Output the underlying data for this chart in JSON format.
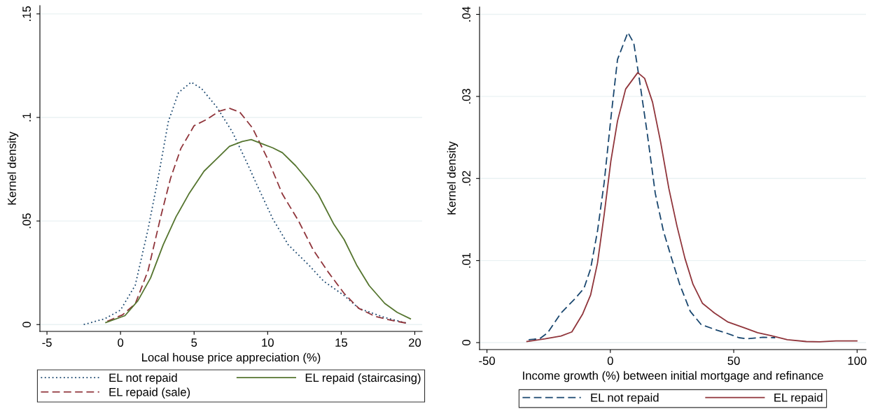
{
  "chart_data": [
    {
      "type": "line",
      "xlabel": "Local house price appreciation (%)",
      "ylabel": "Kernel density",
      "xlim": [
        -5.48,
        20.5
      ],
      "ylim": [
        -0.0033,
        0.154
      ],
      "xticks": [
        -5,
        0,
        5,
        10,
        15,
        20
      ],
      "yticks": [
        {
          "value": 0,
          "label": "0"
        },
        {
          "value": 0.05,
          "label": ".05"
        },
        {
          "value": 0.1,
          "label": ".1"
        },
        {
          "value": 0.15,
          "label": ".15"
        }
      ],
      "grid": "y",
      "legend": "bottom",
      "series": [
        {
          "name": "EL not repaid",
          "color": "#1a476f",
          "line_style": "dotted",
          "x": [
            -2.5,
            -1.07,
            0,
            1.0,
            1.87,
            2.56,
            3.25,
            3.94,
            4.8,
            5.5,
            6.54,
            7.6,
            8.6,
            9.3,
            10.35,
            11.4,
            12.8,
            13.8,
            15.2,
            16.2,
            17.96,
            19.5
          ],
          "values": [
            0,
            0.0028,
            0.007,
            0.019,
            0.046,
            0.071,
            0.098,
            0.112,
            0.117,
            0.114,
            0.105,
            0.093,
            0.078,
            0.067,
            0.051,
            0.0385,
            0.0287,
            0.021,
            0.014,
            0.0078,
            0.0034,
            0.0006
          ]
        },
        {
          "name": "EL repaid (sale)",
          "color": "#90353b",
          "line_style": "dashed",
          "x": [
            -0.9,
            0.14,
            1.0,
            1.87,
            2.73,
            3.4,
            4.1,
            5.0,
            5.85,
            6.7,
            7.4,
            8.1,
            8.96,
            10.0,
            11.0,
            12.1,
            13.1,
            14.15,
            15.2,
            16.2,
            17.3,
            18.3,
            19.5
          ],
          "values": [
            0.0016,
            0.0047,
            0.01,
            0.026,
            0.052,
            0.0706,
            0.085,
            0.096,
            0.099,
            0.103,
            0.1044,
            0.1026,
            0.095,
            0.08,
            0.063,
            0.05,
            0.036,
            0.025,
            0.015,
            0.0078,
            0.004,
            0.0022,
            0.0006
          ]
        },
        {
          "name": "EL repaid (staircasing)",
          "color": "#55752f",
          "line_style": "solid",
          "x": [
            -1.0,
            0.3,
            1.18,
            2.04,
            2.9,
            3.77,
            4.64,
            5.67,
            6.54,
            7.4,
            8.27,
            8.88,
            9.65,
            10.35,
            11.0,
            11.9,
            12.77,
            13.46,
            14.5,
            15.2,
            16.05,
            16.9,
            17.96,
            18.8,
            19.7
          ],
          "values": [
            0.001,
            0.0043,
            0.0115,
            0.0225,
            0.0385,
            0.052,
            0.063,
            0.074,
            0.08,
            0.086,
            0.0884,
            0.0893,
            0.0872,
            0.0853,
            0.083,
            0.0767,
            0.0693,
            0.0626,
            0.0484,
            0.041,
            0.0287,
            0.0188,
            0.0102,
            0.0059,
            0.0028
          ]
        }
      ]
    },
    {
      "type": "line",
      "xlabel": "Income growth (%) between initial mortgage and refinance",
      "ylabel": "Kernel density",
      "xlim": [
        -53,
        103.6
      ],
      "ylim": [
        -0.00085,
        0.0409
      ],
      "xticks": [
        -50,
        0,
        50,
        100
      ],
      "yticks": [
        {
          "value": 0,
          "label": "0"
        },
        {
          "value": 0.01,
          "label": ".01"
        },
        {
          "value": 0.02,
          "label": ".02"
        },
        {
          "value": 0.03,
          "label": ".03"
        },
        {
          "value": 0.04,
          "label": ".04"
        }
      ],
      "grid": "y",
      "legend": "bottom",
      "series": [
        {
          "name": "EL not repaid",
          "color": "#1a476f",
          "line_style": "dashed",
          "x": [
            -33.1,
            -28.7,
            -25.4,
            -20,
            -14.5,
            -10.7,
            -8,
            -5.2,
            -2.5,
            0.2,
            2.9,
            7.1,
            9.5,
            11.7,
            15.0,
            18.2,
            21.5,
            24.8,
            28.1,
            32.4,
            36.8,
            43.3,
            46.6,
            52.1,
            55.3,
            61.9,
            66.8
          ],
          "values": [
            0.00036,
            0.00046,
            0.0012,
            0.0036,
            0.0053,
            0.0066,
            0.009,
            0.0136,
            0.0195,
            0.0273,
            0.0345,
            0.0378,
            0.0365,
            0.0322,
            0.0254,
            0.0182,
            0.0136,
            0.0103,
            0.0071,
            0.0038,
            0.0022,
            0.0015,
            0.0012,
            0.0006,
            0.00046,
            0.00065,
            0.0006
          ]
        },
        {
          "name": "EL repaid",
          "color": "#90353b",
          "line_style": "solid",
          "x": [
            -33.8,
            -26.5,
            -20,
            -15.6,
            -11.2,
            -8,
            -5.2,
            -2.5,
            0.2,
            2.9,
            6.2,
            11.1,
            13.9,
            17.1,
            20.4,
            23.7,
            27,
            30.2,
            33.5,
            37.3,
            42.2,
            47.7,
            54.3,
            59.7,
            65.2,
            71.7,
            79.4,
            84.8,
            91.4,
            99.9
          ],
          "values": [
            0.00013,
            0.00046,
            0.0008,
            0.0013,
            0.0035,
            0.0058,
            0.0097,
            0.0156,
            0.0221,
            0.027,
            0.0309,
            0.0329,
            0.0322,
            0.0293,
            0.0244,
            0.0188,
            0.0142,
            0.0103,
            0.0071,
            0.0048,
            0.0036,
            0.0025,
            0.0018,
            0.0012,
            0.00085,
            0.00036,
            0.00013,
            0.0001,
            0.0002,
            0.0002
          ]
        }
      ]
    }
  ]
}
